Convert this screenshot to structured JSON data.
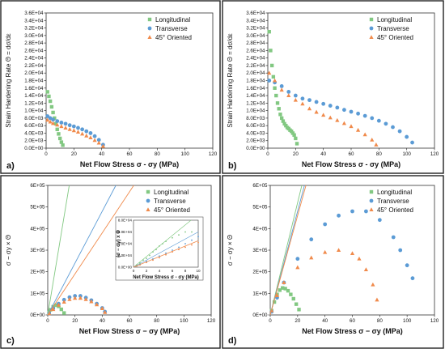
{
  "colors": {
    "longitudinal": "#82c882",
    "transverse": "#5b9bd5",
    "oriented": "#f08a4b",
    "border": "#222222"
  },
  "chart_data": [
    {
      "panel": "a)",
      "type": "scatter",
      "xlabel": "Net Flow Stress σ - σy (MPa)",
      "ylabel": "Strain Hardening Rate Θ = dσ/dε",
      "xlim": [
        0,
        120
      ],
      "ylim": [
        0,
        36000
      ],
      "xticks": [
        "0",
        "20",
        "40",
        "60",
        "80",
        "100",
        "120"
      ],
      "yticks": [
        "0.0E+00",
        "2.0E+03",
        "4.0E+03",
        "6.0E+03",
        "8.0E+03",
        "1.0E+04",
        "1.2E+04",
        "1.4E+04",
        "1.6E+04",
        "1.8E+04",
        "2.0E+04",
        "2.2E+04",
        "2.4E+04",
        "2.6E+04",
        "2.8E+04",
        "3.0E+04",
        "3.2E+04",
        "3.4E+04",
        "3.6E+04"
      ],
      "legend": "top-right",
      "series": [
        {
          "name": "Longitudinal",
          "marker": "square",
          "x": [
            1,
            2,
            3,
            4,
            5,
            6,
            7,
            8,
            9,
            10,
            11,
            12
          ],
          "y": [
            15000,
            13800,
            12500,
            11000,
            9500,
            8000,
            6500,
            5000,
            3800,
            2600,
            1600,
            800
          ]
        },
        {
          "name": "Transverse",
          "marker": "circle",
          "x": [
            1,
            3,
            5,
            8,
            11,
            14,
            17,
            20,
            23,
            26,
            29,
            32,
            35,
            38,
            41
          ],
          "y": [
            8500,
            8000,
            7600,
            7200,
            6800,
            6500,
            6100,
            5800,
            5400,
            5000,
            4500,
            4000,
            3200,
            2200,
            900
          ]
        },
        {
          "name": "45° Oriented",
          "marker": "triangle",
          "x": [
            1,
            3,
            5,
            8,
            11,
            14,
            17,
            20,
            23,
            26,
            29,
            32,
            35,
            38,
            41
          ],
          "y": [
            7500,
            7000,
            6600,
            6200,
            5800,
            5400,
            5000,
            4700,
            4300,
            3800,
            3300,
            2800,
            2100,
            1400,
            500
          ]
        }
      ]
    },
    {
      "panel": "b)",
      "type": "scatter",
      "xlabel": "Net Flow Stress σ - σy (MPa)",
      "ylabel": "Strain Hardening Rate Θ = dσ/dε",
      "xlim": [
        0,
        120
      ],
      "ylim": [
        0,
        36000
      ],
      "xticks": [
        "0",
        "20",
        "40",
        "60",
        "80",
        "100",
        "120"
      ],
      "yticks": [
        "0.0E+00",
        "2.0E+03",
        "4.0E+03",
        "6.0E+03",
        "8.0E+03",
        "1.0E+04",
        "1.2E+04",
        "1.4E+04",
        "1.6E+04",
        "1.8E+04",
        "2.0E+04",
        "2.2E+04",
        "2.4E+04",
        "2.6E+04",
        "2.8E+04",
        "3.0E+04",
        "3.2E+04",
        "3.4E+04",
        "3.6E+04"
      ],
      "legend": "top-right",
      "series": [
        {
          "name": "Longitudinal",
          "marker": "square",
          "x": [
            1,
            2,
            3,
            4,
            5,
            6,
            7,
            8,
            9,
            10,
            11,
            12,
            13,
            14,
            15,
            16,
            17,
            18,
            19,
            20,
            21
          ],
          "y": [
            31000,
            26000,
            22000,
            19000,
            16000,
            14000,
            12000,
            10500,
            9000,
            8000,
            7200,
            6500,
            6000,
            5500,
            5200,
            4800,
            4500,
            4000,
            3500,
            2600,
            1200
          ]
        },
        {
          "name": "Transverse",
          "marker": "circle",
          "x": [
            1,
            5,
            10,
            15,
            20,
            25,
            30,
            35,
            40,
            45,
            50,
            55,
            60,
            65,
            70,
            75,
            80,
            85,
            90,
            95,
            100,
            104
          ],
          "y": [
            18000,
            17500,
            16500,
            15000,
            14000,
            13200,
            12800,
            12300,
            11800,
            11300,
            10800,
            10200,
            9700,
            9200,
            8600,
            8000,
            7300,
            6500,
            5600,
            4500,
            3000,
            1500
          ]
        },
        {
          "name": "45° Oriented",
          "marker": "triangle",
          "x": [
            1,
            5,
            10,
            15,
            20,
            25,
            30,
            35,
            40,
            45,
            50,
            55,
            60,
            65,
            70,
            75,
            78
          ],
          "y": [
            20000,
            18000,
            15500,
            14000,
            12800,
            11800,
            10500,
            9600,
            8800,
            8100,
            7400,
            6600,
            5800,
            4800,
            3600,
            2200,
            900
          ]
        }
      ]
    },
    {
      "panel": "c)",
      "type": "scatter",
      "xlabel": "Net Flow Stress σ − σy (MPa)",
      "ylabel": "σ − σy × Θ",
      "xlim": [
        0,
        120
      ],
      "ylim": [
        0,
        600000
      ],
      "xticks": [
        "0",
        "20",
        "40",
        "60",
        "80",
        "100",
        "120"
      ],
      "yticks": [
        "0E+00",
        "1E+05",
        "2E+05",
        "3E+05",
        "4E+05",
        "5E+05",
        "6E+05"
      ],
      "legend": "top-right",
      "series": [
        {
          "name": "Longitudinal",
          "marker": "square",
          "x": [
            1,
            2,
            4,
            6,
            8,
            10,
            12
          ],
          "y": [
            12000,
            24000,
            38000,
            45000,
            40000,
            26000,
            9000
          ]
        },
        {
          "name": "Transverse",
          "marker": "circle",
          "x": [
            1,
            4,
            8,
            12,
            16,
            20,
            24,
            28,
            32,
            36,
            40,
            42
          ],
          "y": [
            8000,
            30000,
            52000,
            70000,
            82000,
            88000,
            88000,
            80000,
            68000,
            52000,
            32000,
            15000
          ]
        },
        {
          "name": "45° Oriented",
          "marker": "triangle",
          "x": [
            1,
            4,
            8,
            12,
            16,
            20,
            24,
            28,
            32,
            36,
            40,
            42
          ],
          "y": [
            7000,
            26000,
            46000,
            60000,
            72000,
            78000,
            78000,
            72000,
            62000,
            48000,
            30000,
            12000
          ]
        }
      ],
      "inset": {
        "xlabel": "Net Flow Stress σ - σy (MPa)",
        "ylabel": "(σ − σy) x Θ",
        "xlim": [
          0,
          10
        ],
        "ylim": [
          0,
          80000
        ],
        "xticks": [
          "0",
          "2",
          "4",
          "6",
          "8",
          "10"
        ],
        "yticks": [
          "0.0E+00",
          "2.0E+04",
          "4.0E+04",
          "6.0E+04",
          "8.0E+04"
        ]
      }
    },
    {
      "panel": "d)",
      "type": "scatter",
      "xlabel": "Net Flow Stress σ − σy (MPa)",
      "ylabel": "σ − σy × Θ",
      "xlim": [
        0,
        120
      ],
      "ylim": [
        0,
        600000
      ],
      "xticks": [
        "0",
        "20",
        "40",
        "60",
        "80",
        "100",
        "120"
      ],
      "yticks": [
        "0E+00",
        "1E+05",
        "2E+05",
        "3E+05",
        "4E+05",
        "5E+05",
        "6E+05"
      ],
      "legend": "top-right",
      "series": [
        {
          "name": "Longitudinal",
          "marker": "square",
          "x": [
            1,
            3,
            5,
            7,
            9,
            11,
            13,
            15,
            17,
            19,
            21
          ],
          "y": [
            20000,
            60000,
            95000,
            115000,
            125000,
            122000,
            112000,
            95000,
            75000,
            50000,
            25000
          ]
        },
        {
          "name": "Transverse",
          "marker": "circle",
          "x": [
            1,
            5,
            10,
            20,
            30,
            40,
            50,
            60,
            70,
            80,
            90,
            95,
            100,
            104
          ],
          "y": [
            15000,
            80000,
            150000,
            260000,
            350000,
            420000,
            460000,
            480000,
            480000,
            440000,
            360000,
            300000,
            230000,
            170000
          ]
        },
        {
          "name": "45° Oriented",
          "marker": "triangle",
          "x": [
            1,
            5,
            10,
            20,
            30,
            40,
            50,
            60,
            65,
            70,
            75,
            78
          ],
          "y": [
            20000,
            90000,
            150000,
            220000,
            265000,
            290000,
            300000,
            285000,
            260000,
            210000,
            140000,
            70000
          ]
        }
      ]
    }
  ]
}
